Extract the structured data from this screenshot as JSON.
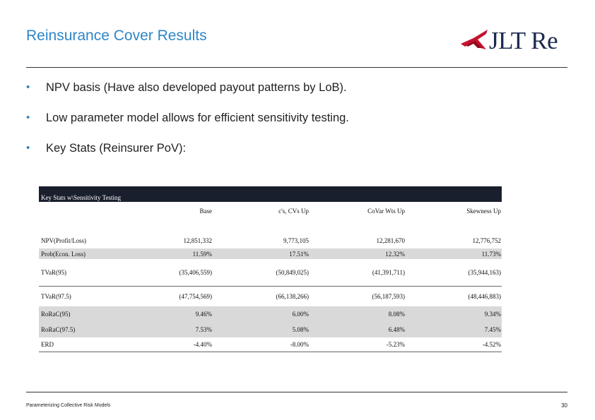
{
  "slide": {
    "title": "Reinsurance Cover Results",
    "logo_text": "JLT Re",
    "bullets": [
      "NPV basis (Have also developed payout patterns by LoB).",
      "Low parameter model allows for efficient sensitivity testing.",
      "Key Stats (Reinsurer PoV):"
    ],
    "footer": "Parameterizing Collective Risk Models",
    "page_number": "30"
  },
  "table": {
    "title": "Key Stats w\\Sensitivity Testing",
    "columns": [
      "Base",
      "c's, CVs Up",
      "CoVar Wts Up",
      "Skewness Up"
    ],
    "rows": [
      {
        "label": "NPV(Profit/Loss)",
        "values": [
          "12,851,332",
          "9,773,105",
          "12,281,670",
          "12,776,752"
        ]
      },
      {
        "label": "Prob(Econ. Loss)",
        "values": [
          "11.59%",
          "17.51%",
          "12.32%",
          "11.73%"
        ]
      },
      {
        "label": "TVaR(95)",
        "values": [
          "(35,406,559)",
          "(50,849,025)",
          "(41,391,711)",
          "(35,944,163)"
        ]
      },
      {
        "label": "TVaR(97.5)",
        "values": [
          "(47,754,569)",
          "(66,138,266)",
          "(56,187,593)",
          "(48,446,883)"
        ]
      },
      {
        "label": "RoRaC(95)",
        "values": [
          "9.46%",
          "6.00%",
          "8.08%",
          "9.34%"
        ]
      },
      {
        "label": "RoRaC(97.5)",
        "values": [
          "7.53%",
          "5.08%",
          "6.48%",
          "7.45%"
        ]
      },
      {
        "label": "ERD",
        "values": [
          "-4.40%",
          "-8.00%",
          "-5.23%",
          "-4.52%"
        ]
      }
    ]
  },
  "colors": {
    "title": "#2e86c8",
    "logo_mark": "#c8102e",
    "logo_text": "#1b2a4e",
    "table_header_bg": "#1a1f2e",
    "row_shade": "#d9d9d9"
  },
  "icons": {
    "logo": "jlt-re-flag-logo"
  }
}
